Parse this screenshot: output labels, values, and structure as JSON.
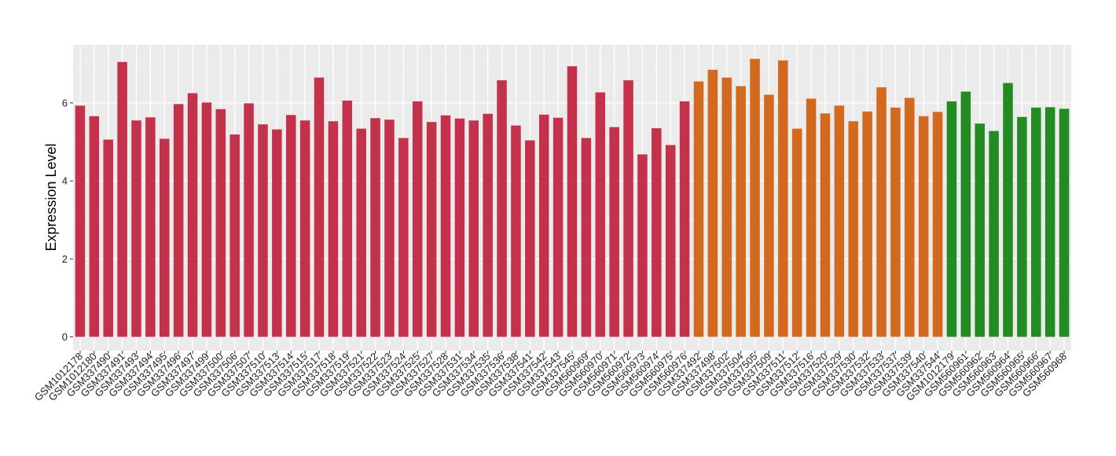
{
  "chart_data": {
    "type": "bar",
    "title": "",
    "xlabel": "",
    "ylabel": "Expression Level",
    "ylim": [
      0,
      7.4
    ],
    "yticks": [
      0,
      2,
      4,
      6
    ],
    "grid": true,
    "legend": "none",
    "group_colors": [
      "#C3324A",
      "#D2691E",
      "#228B22"
    ],
    "categories": [
      "GSM1012178",
      "GSM1012180",
      "GSM337490",
      "GSM337491",
      "GSM337493",
      "GSM337494",
      "GSM337495",
      "GSM337496",
      "GSM337497",
      "GSM337499",
      "GSM337500",
      "GSM337506",
      "GSM337507",
      "GSM337510",
      "GSM337513",
      "GSM337514",
      "GSM337515",
      "GSM337517",
      "GSM337518",
      "GSM337519",
      "GSM337521",
      "GSM337522",
      "GSM337523",
      "GSM337524",
      "GSM337525",
      "GSM337527",
      "GSM337528",
      "GSM337531",
      "GSM337534",
      "GSM337535",
      "GSM337536",
      "GSM337538",
      "GSM337541",
      "GSM337542",
      "GSM337543",
      "GSM337545",
      "GSM560969",
      "GSM560970",
      "GSM560971",
      "GSM560972",
      "GSM560973",
      "GSM560974",
      "GSM560975",
      "GSM560976",
      "GSM337492",
      "GSM337498",
      "GSM337502",
      "GSM337504",
      "GSM337505",
      "GSM337509",
      "GSM337511",
      "GSM337512",
      "GSM337516",
      "GSM337520",
      "GSM337529",
      "GSM337530",
      "GSM337532",
      "GSM337533",
      "GSM337537",
      "GSM337539",
      "GSM337540",
      "GSM337544",
      "GSM1012179",
      "GSM560961",
      "GSM560962",
      "GSM560963",
      "GSM560964",
      "GSM560965",
      "GSM560966",
      "GSM560967",
      "GSM560968"
    ],
    "values": [
      5.93,
      5.66,
      5.06,
      7.05,
      5.55,
      5.63,
      5.08,
      5.97,
      6.25,
      6.01,
      5.84,
      5.19,
      5.99,
      5.45,
      5.32,
      5.69,
      5.55,
      6.65,
      5.53,
      6.06,
      5.34,
      5.61,
      5.57,
      5.1,
      6.04,
      5.51,
      5.68,
      5.6,
      5.55,
      5.72,
      6.58,
      5.42,
      5.04,
      5.7,
      5.62,
      6.94,
      5.1,
      6.27,
      5.38,
      6.58,
      4.68,
      5.35,
      4.92,
      6.04,
      6.55,
      6.85,
      6.65,
      6.43,
      7.13,
      6.21,
      7.09,
      5.34,
      6.11,
      5.73,
      5.93,
      5.53,
      5.78,
      6.4,
      5.88,
      6.13,
      5.66,
      5.77,
      6.04,
      6.29,
      5.47,
      5.28,
      6.51,
      5.64,
      5.88,
      5.89,
      5.85
    ],
    "groups": [
      0,
      0,
      0,
      0,
      0,
      0,
      0,
      0,
      0,
      0,
      0,
      0,
      0,
      0,
      0,
      0,
      0,
      0,
      0,
      0,
      0,
      0,
      0,
      0,
      0,
      0,
      0,
      0,
      0,
      0,
      0,
      0,
      0,
      0,
      0,
      0,
      0,
      0,
      0,
      0,
      0,
      0,
      0,
      0,
      1,
      1,
      1,
      1,
      1,
      1,
      1,
      1,
      1,
      1,
      1,
      1,
      1,
      1,
      1,
      1,
      1,
      1,
      2,
      2,
      2,
      2,
      2,
      2,
      2,
      2,
      2
    ]
  }
}
